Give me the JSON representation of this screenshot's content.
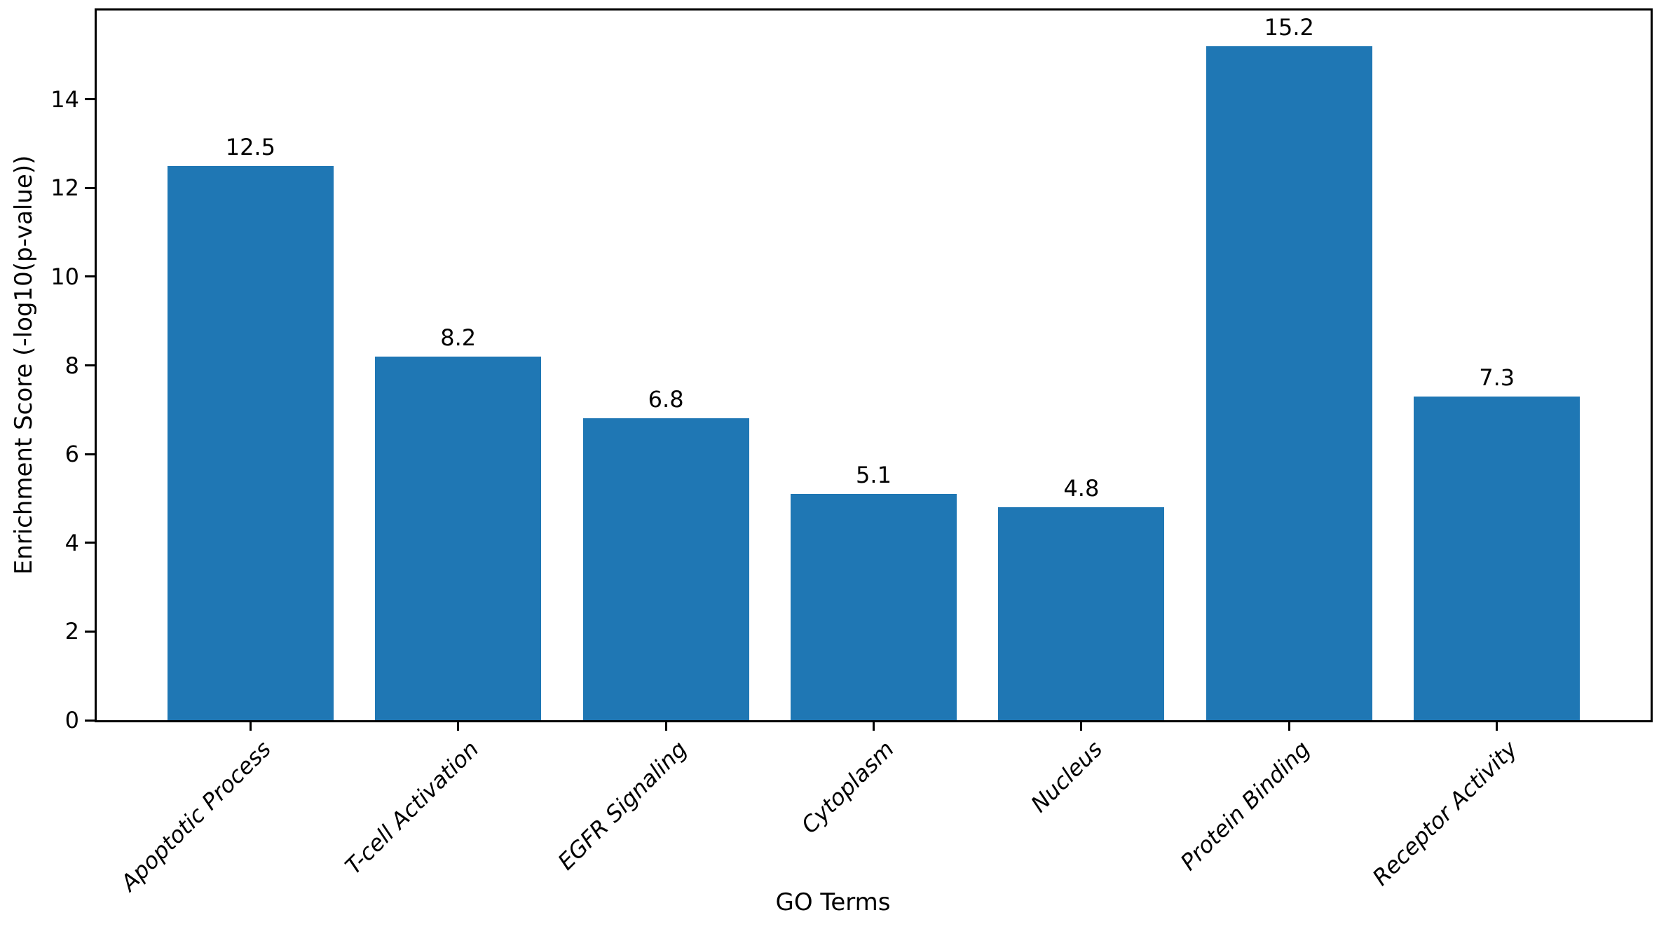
{
  "figure": {
    "background": "#ffffff"
  },
  "chart_data": {
    "type": "bar",
    "title": "",
    "categories": [
      "Apoptotic Process",
      "T-cell Activation",
      "EGFR Signaling",
      "Cytoplasm",
      "Nucleus",
      "Protein Binding",
      "Receptor Activity"
    ],
    "values": [
      12.5,
      8.2,
      6.8,
      5.1,
      4.8,
      15.2,
      7.3
    ],
    "bar_value_labels": [
      "12.5",
      "8.2",
      "6.8",
      "5.1",
      "4.8",
      "15.2",
      "7.3"
    ],
    "xlabel": "GO Terms",
    "ylabel": "Enrichment Score (-log10(p-value))",
    "ylim": [
      0,
      16
    ],
    "yticks": [
      0,
      2,
      4,
      6,
      8,
      10,
      12,
      14
    ],
    "ytick_labels": [
      "0",
      "2",
      "4",
      "6",
      "8",
      "10",
      "12",
      "14"
    ],
    "bar_color": "#1f77b4",
    "axis_color": "#000000",
    "text_color": "#000000",
    "grid": false,
    "legend": "none",
    "bar_width_fraction": 0.8,
    "xtick_label_rotation_deg": 45,
    "xtick_label_style": "italic"
  }
}
